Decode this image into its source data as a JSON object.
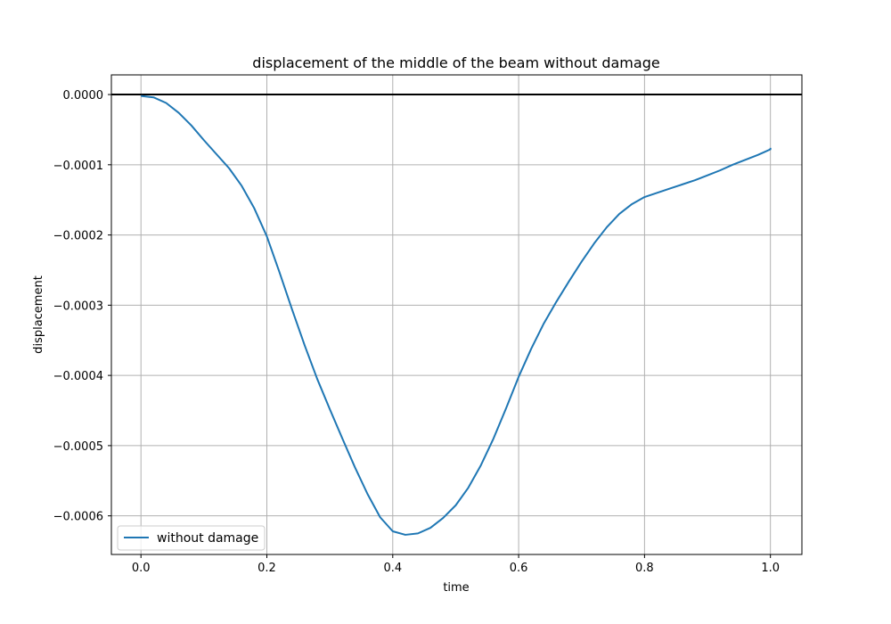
{
  "chart_data": {
    "type": "line",
    "title": "displacement of the middle of the beam without damage",
    "xlabel": "time",
    "ylabel": "displacement",
    "xlim": [
      -0.047,
      1.05
    ],
    "ylim": [
      -0.000655,
      2.8e-05
    ],
    "grid": true,
    "legend_position": "lower-left",
    "x_ticks": [
      0.0,
      0.2,
      0.4,
      0.6,
      0.8,
      1.0
    ],
    "x_tick_labels": [
      "0.0",
      "0.2",
      "0.4",
      "0.6",
      "0.8",
      "1.0"
    ],
    "y_ticks": [
      0.0,
      -0.0001,
      -0.0002,
      -0.0003,
      -0.0004,
      -0.0005,
      -0.0006
    ],
    "y_tick_labels": [
      "0.0000",
      "−0.0001",
      "−0.0002",
      "−0.0003",
      "−0.0004",
      "−0.0005",
      "−0.0006"
    ],
    "reference_line": {
      "y": 0.0,
      "color": "#000000"
    },
    "series": [
      {
        "name": "without damage",
        "color": "#1f77b4",
        "x": [
          0.0,
          0.02,
          0.04,
          0.06,
          0.08,
          0.1,
          0.12,
          0.14,
          0.16,
          0.18,
          0.2,
          0.22,
          0.24,
          0.26,
          0.28,
          0.3,
          0.32,
          0.34,
          0.36,
          0.38,
          0.4,
          0.42,
          0.44,
          0.46,
          0.48,
          0.5,
          0.52,
          0.54,
          0.56,
          0.58,
          0.6,
          0.62,
          0.64,
          0.66,
          0.68,
          0.7,
          0.72,
          0.74,
          0.76,
          0.78,
          0.8,
          0.82,
          0.84,
          0.86,
          0.88,
          0.9,
          0.92,
          0.94,
          0.96,
          0.98,
          0.99,
          1.0,
          1.0
        ],
        "y": [
          -2e-06,
          -4e-06,
          -1.2e-05,
          -2.6e-05,
          -4.4e-05,
          -6.5e-05,
          -8.5e-05,
          -0.000105,
          -0.00013,
          -0.000162,
          -0.000202,
          -0.000253,
          -0.000306,
          -0.000357,
          -0.000405,
          -0.000448,
          -0.00049,
          -0.000531,
          -0.000569,
          -0.000602,
          -0.000622,
          -0.000627,
          -0.000625,
          -0.000617,
          -0.000603,
          -0.000585,
          -0.00056,
          -0.000528,
          -0.00049,
          -0.000447,
          -0.000402,
          -0.000362,
          -0.000326,
          -0.000295,
          -0.000266,
          -0.000238,
          -0.000212,
          -0.000189,
          -0.00017,
          -0.000156,
          -0.000146,
          -0.00014,
          -0.000134,
          -0.000128,
          -0.000122,
          -0.000115,
          -0.000108,
          -0.0001,
          -9.3e-05,
          -8.6e-05,
          -8.2e-05,
          -7.8e-05,
          -7.6e-05
        ]
      }
    ]
  }
}
